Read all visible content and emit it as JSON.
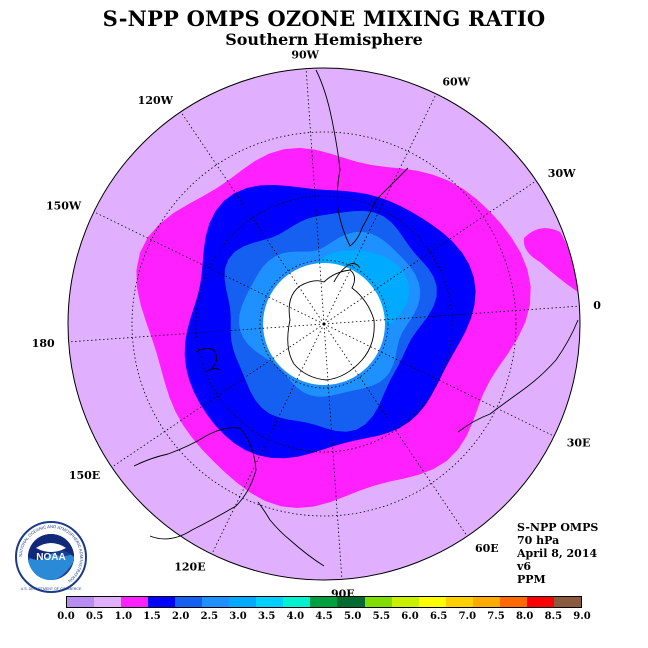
{
  "title": "S-NPP OMPS OZONE MIXING RATIO",
  "subtitle": "Southern Hemisphere",
  "longitude_labels": [
    "0",
    "30E",
    "60E",
    "90E",
    "120E",
    "150E",
    "180",
    "150W",
    "120W",
    "90W",
    "60W",
    "30W"
  ],
  "info": {
    "instrument": "S-NPP OMPS",
    "level": "70 hPa",
    "date": "April 8, 2014",
    "version": "v6",
    "units": "PPM"
  },
  "logo": {
    "text": "NOAA",
    "ring_text": "NATIONAL OCEANIC AND ATMOSPHERIC ADMINISTRATION",
    "bottom_text": "U.S. DEPARTMENT OF COMMERCE",
    "icon": "noaa-logo-icon"
  },
  "colorbar": {
    "ticks": [
      "0.0",
      "0.5",
      "1.0",
      "1.5",
      "2.0",
      "2.5",
      "3.0",
      "3.5",
      "4.0",
      "4.5",
      "5.0",
      "5.5",
      "6.0",
      "6.5",
      "7.0",
      "7.5",
      "8.0",
      "8.5",
      "9.0"
    ],
    "colors": [
      "#b88cf0",
      "#e0b0ff",
      "#ff20ff",
      "#0000ff",
      "#1560f0",
      "#1e90ff",
      "#00aaff",
      "#00cfff",
      "#00f0d0",
      "#00a040",
      "#006b2e",
      "#80dd00",
      "#c8f000",
      "#ffff00",
      "#ffd000",
      "#ffaa00",
      "#ff6a00",
      "#ff0000",
      "#8b5a3c"
    ]
  },
  "map_colors": {
    "background_disk": "#e0b0ff",
    "band_1_0": "#ff20ff",
    "band_1_5": "#0000ff",
    "band_2_0": "#1560f0",
    "band_2_5": "#1e90ff",
    "band_3_0": "#00aaff",
    "polar_gap": "#ffffff"
  }
}
